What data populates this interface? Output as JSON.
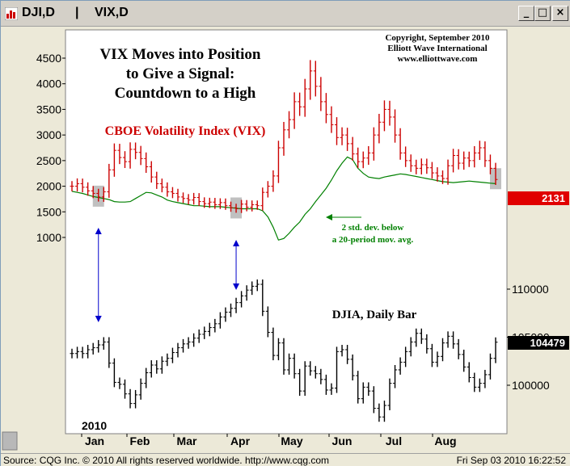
{
  "window": {
    "title_left": "DJI,D",
    "title_separator": "|",
    "title_right": "VIX,D",
    "buttons": {
      "minimize": "_",
      "maximize": "□",
      "close": "×"
    }
  },
  "status": {
    "left": "Source: CQG Inc. © 2010 All rights reserved worldwide. http://www.cqg.com",
    "right": "Fri Sep 03 2010 16:22:52"
  },
  "colors": {
    "vix_bars": "#cc0000",
    "djia_bars": "#000000",
    "band": "#008000",
    "marker": "#0000cc",
    "highlight": "#b0b0b0"
  },
  "chart_data": {
    "type": "ohlc",
    "title_lines": [
      "VIX Moves into Position",
      "to Give a Signal:",
      "Countdown to a High"
    ],
    "copyright_lines": [
      "Copyright, September 2010",
      "Elliott Wave International",
      "www.elliottwave.com"
    ],
    "vix_label": "CBOE Volatility Index (VIX)",
    "djia_label": "DJIA, Daily Bar",
    "band_annotation": [
      "2 std. dev. below",
      "a 20-period mov. avg."
    ],
    "year_label": "2010",
    "months": [
      "Jan",
      "Feb",
      "Mar",
      "Apr",
      "May",
      "Jun",
      "Jul",
      "Aug"
    ],
    "vix_axis": {
      "ticks": [
        "4500",
        "4000",
        "3500",
        "3000",
        "2500",
        "2000",
        "1500",
        "1000"
      ],
      "ylim": [
        1000,
        4500
      ]
    },
    "djia_axis": {
      "ticks": [
        "110000",
        "105000",
        "100000"
      ]
    },
    "last_vix": "2131",
    "last_djia": "104479",
    "vix_close": [
      2000,
      2050,
      1980,
      1910,
      1860,
      1790,
      1890,
      2320,
      2700,
      2560,
      2480,
      2720,
      2660,
      2540,
      2380,
      2180,
      2050,
      1980,
      1890,
      1860,
      1790,
      1760,
      1730,
      1780,
      1700,
      1660,
      1690,
      1640,
      1680,
      1620,
      1580,
      1560,
      1650,
      1590,
      1640,
      1620,
      1880,
      2000,
      2200,
      2750,
      3100,
      3300,
      3650,
      3550,
      3900,
      4250,
      3950,
      3650,
      3400,
      3200,
      2950,
      3000,
      2830,
      2630,
      2480,
      2550,
      2650,
      3000,
      3250,
      3500,
      3350,
      3000,
      2650,
      2500,
      2400,
      2350,
      2420,
      2360,
      2260,
      2200,
      2150,
      2400,
      2600,
      2450,
      2550,
      2500,
      2650,
      2750,
      2500,
      2350,
      2131
    ],
    "band": [
      1900,
      1880,
      1860,
      1830,
      1800,
      1780,
      1760,
      1740,
      1700,
      1690,
      1690,
      1700,
      1760,
      1820,
      1880,
      1870,
      1830,
      1790,
      1730,
      1700,
      1680,
      1660,
      1640,
      1620,
      1620,
      1610,
      1600,
      1600,
      1600,
      1590,
      1580,
      1570,
      1560,
      1560,
      1560,
      1560,
      1520,
      1400,
      1200,
      950,
      980,
      1080,
      1200,
      1300,
      1450,
      1560,
      1700,
      1830,
      1960,
      2120,
      2300,
      2450,
      2570,
      2520,
      2350,
      2250,
      2180,
      2160,
      2150,
      2180,
      2200,
      2220,
      2240,
      2230,
      2210,
      2190,
      2170,
      2150,
      2130,
      2110,
      2090,
      2080,
      2070,
      2080,
      2090,
      2100,
      2090,
      2080,
      2070,
      2060,
      2050
    ],
    "djia_close": [
      103300,
      103500,
      103300,
      103700,
      103900,
      104200,
      104500,
      102300,
      100300,
      100100,
      99100,
      98100,
      99000,
      100200,
      101300,
      102100,
      101700,
      102500,
      102800,
      103400,
      103900,
      104300,
      104500,
      104900,
      105300,
      105600,
      106000,
      106400,
      107100,
      107600,
      108000,
      108600,
      109300,
      109900,
      110300,
      110500,
      107700,
      105500,
      103100,
      104400,
      101600,
      102800,
      101200,
      99400,
      102000,
      101500,
      101200,
      100600,
      99500,
      99700,
      103500,
      103700,
      102700,
      101000,
      98600,
      99800,
      99400,
      97600,
      96700,
      97900,
      100200,
      101600,
      102400,
      103500,
      104500,
      105400,
      104800,
      103800,
      102400,
      103000,
      104400,
      105100,
      104300,
      103200,
      101900,
      100800,
      99800,
      100200,
      101100,
      102800,
      104479
    ]
  }
}
